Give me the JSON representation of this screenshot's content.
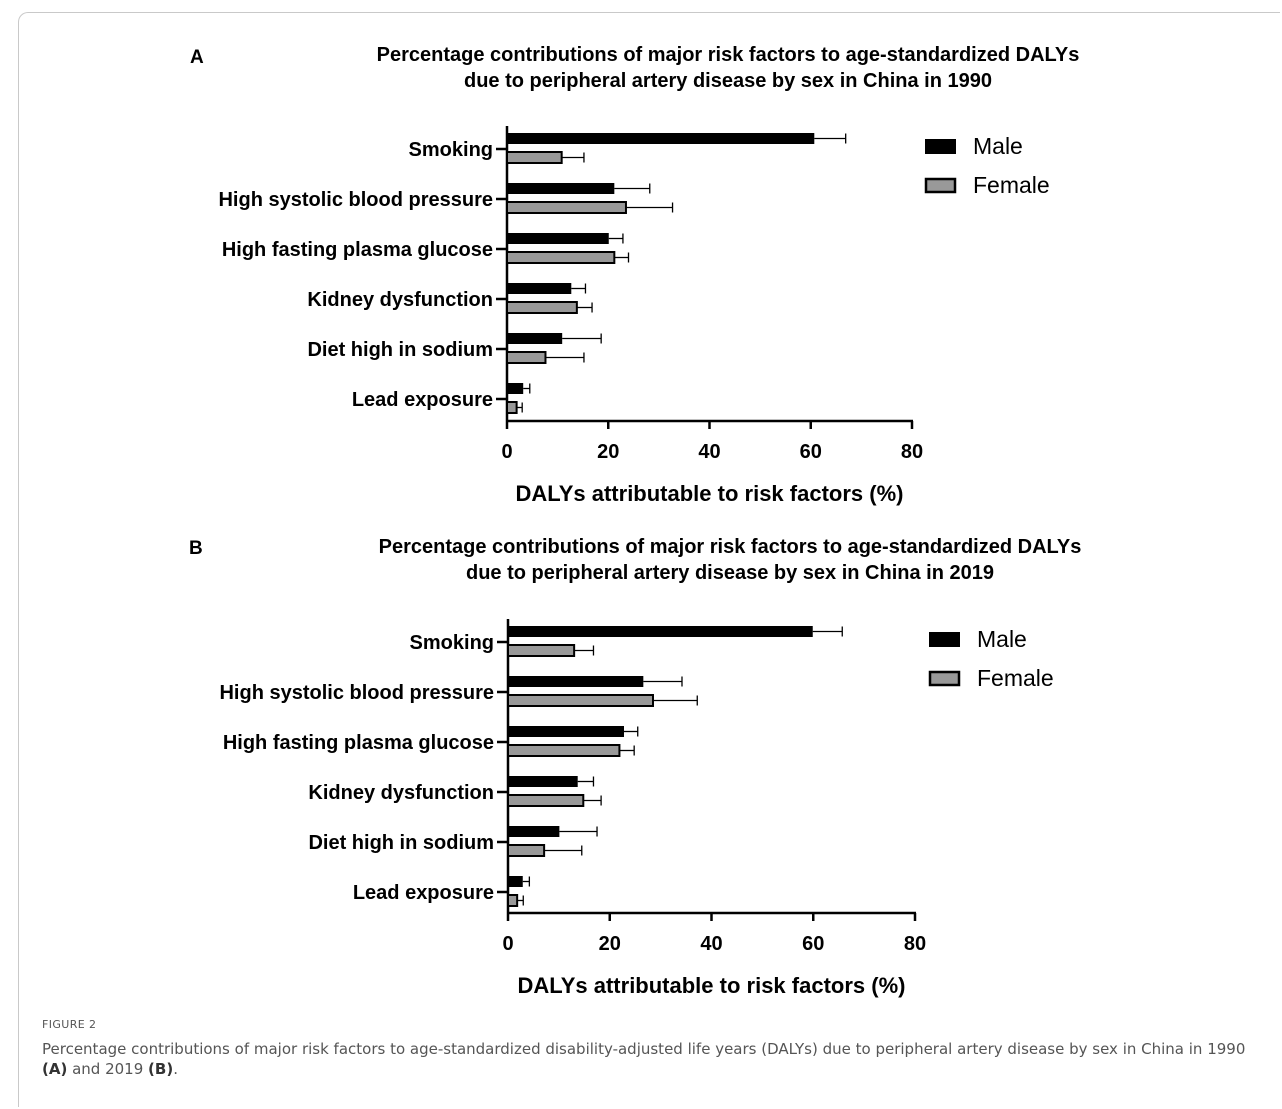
{
  "figure": {
    "label": "FIGURE 2",
    "caption_parts": [
      "Percentage contributions of major risk factors to age-standardized disability-adjusted life years (DALYs) due to peripheral artery disease by sex in China in 1990 ",
      "(A)",
      " and 2019 ",
      "(B)",
      "."
    ]
  },
  "colors": {
    "male": "#000000",
    "female": "#999999",
    "axis": "#000000"
  },
  "chart_data": [
    {
      "panel": "A",
      "type": "bar",
      "orientation": "horizontal",
      "title_lines": [
        "Percentage contributions of major risk factors to age-standardized DALYs",
        "due to peripheral artery disease by sex in China in 1990"
      ],
      "categories": [
        "Smoking",
        "High systolic blood pressure",
        "High fasting plasma glucose",
        "Kidney dysfunction",
        "Diet high in sodium",
        "Lead exposure"
      ],
      "series": [
        {
          "name": "Male",
          "values": [
            60.7,
            21.2,
            20.1,
            12.7,
            10.9,
            3.2
          ],
          "error_upper": [
            66.9,
            28.2,
            22.9,
            15.5,
            18.6,
            4.5
          ]
        },
        {
          "name": "Female",
          "values": [
            10.8,
            23.5,
            21.2,
            13.8,
            7.6,
            1.9
          ],
          "error_upper": [
            15.2,
            32.7,
            24.0,
            16.8,
            15.2,
            3.0
          ]
        }
      ],
      "xlabel": "DALYs attributable to risk factors (%)",
      "xlim": [
        0,
        80
      ],
      "xticks": [
        0,
        20,
        40,
        60,
        80
      ],
      "legend": "top-right",
      "grid": false
    },
    {
      "panel": "B",
      "type": "bar",
      "orientation": "horizontal",
      "title_lines": [
        "Percentage contributions of major risk factors to age-standardized DALYs",
        "due to peripheral artery disease by sex in China in 2019"
      ],
      "categories": [
        "Smoking",
        "High systolic blood pressure",
        "High fasting plasma glucose",
        "Kidney dysfunction",
        "Diet high in sodium",
        "Lead exposure"
      ],
      "series": [
        {
          "name": "Male",
          "values": [
            59.9,
            26.6,
            22.8,
            13.7,
            10.1,
            2.9
          ],
          "error_upper": [
            65.7,
            34.2,
            25.5,
            16.8,
            17.5,
            4.2
          ]
        },
        {
          "name": "Female",
          "values": [
            13.0,
            28.5,
            21.9,
            14.8,
            7.1,
            1.8
          ],
          "error_upper": [
            16.8,
            37.2,
            24.8,
            18.3,
            14.5,
            3.0
          ]
        }
      ],
      "xlabel": "DALYs attributable to risk factors (%)",
      "xlim": [
        0,
        80
      ],
      "xticks": [
        0,
        20,
        40,
        60,
        80
      ],
      "legend": "top-right",
      "grid": false
    }
  ]
}
